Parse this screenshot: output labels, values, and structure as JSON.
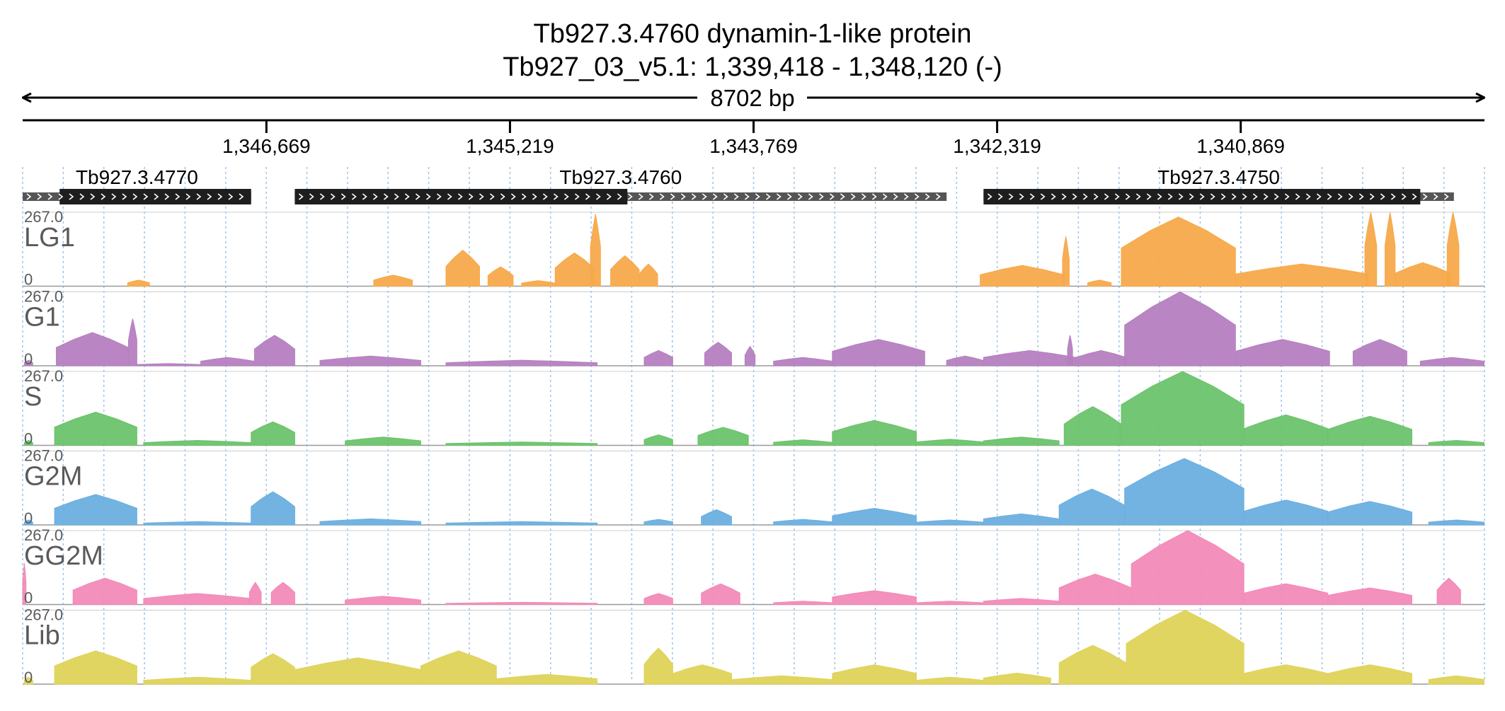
{
  "header": {
    "title": "Tb927.3.4760  dynamin-1-like protein",
    "locus": "Tb927_03_v5.1: 1,339,418 - 1,348,120 (-)",
    "span": "8702 bp"
  },
  "colors": {
    "axis": "#000000",
    "grid": "#9ec3e6",
    "track_label": "#5a5a5a",
    "gene_fill": "#1e1e1e",
    "gene_utr_fill": "#555555",
    "baseline": "#999999"
  },
  "chart_data": {
    "type": "area",
    "region": {
      "start": 1348120,
      "end": 1339418,
      "strand": "-"
    },
    "ruler": {
      "ticks": [
        1346669,
        1345219,
        1343769,
        1342319,
        1340869
      ],
      "tick_labels": [
        "1,346,669",
        "1,345,219",
        "1,343,769",
        "1,342,319",
        "1,340,869"
      ]
    },
    "genes": [
      {
        "name": "Tb927.3.4770",
        "label": "Tb927.3.4770",
        "start": 1348120,
        "end": 1346760,
        "cds_start": 1347900,
        "cds_end": 1346760
      },
      {
        "name": "Tb927.3.4760",
        "label": "Tb927.3.4760",
        "start": 1346500,
        "end": 1342620,
        "cds_start": 1346500,
        "cds_end": 1344520
      },
      {
        "name": "Tb927.3.4750",
        "label": "Tb927.3.4750",
        "start": 1342400,
        "end": 1339600,
        "cds_start": 1342400,
        "cds_end": 1339800
      }
    ],
    "y_max_label": "267.0",
    "y_min_label": "0",
    "ylim": [
      0,
      267
    ],
    "series": [
      {
        "name": "LG1",
        "color": "#f7a94a",
        "segments": [
          {
            "s": 1347495,
            "e": 1347365,
            "peak": 22
          },
          {
            "s": 1346030,
            "e": 1345800,
            "peak": 40
          },
          {
            "s": 1345600,
            "e": 1345400,
            "peak": 130
          },
          {
            "s": 1345350,
            "e": 1345200,
            "peak": 70
          },
          {
            "s": 1345150,
            "e": 1344950,
            "peak": 20
          },
          {
            "s": 1344950,
            "e": 1344720,
            "peak": 120
          },
          {
            "s": 1344740,
            "e": 1344680,
            "peak": 260
          },
          {
            "s": 1344620,
            "e": 1344450,
            "peak": 110
          },
          {
            "s": 1344450,
            "e": 1344340,
            "peak": 80
          },
          {
            "s": 1342420,
            "e": 1341920,
            "peak": 75
          },
          {
            "s": 1341930,
            "e": 1341890,
            "peak": 180
          },
          {
            "s": 1341780,
            "e": 1341640,
            "peak": 22
          },
          {
            "s": 1341580,
            "e": 1340900,
            "peak": 250
          },
          {
            "s": 1340900,
            "e": 1340110,
            "peak": 80
          },
          {
            "s": 1340130,
            "e": 1340060,
            "peak": 267
          },
          {
            "s": 1340010,
            "e": 1339950,
            "peak": 267
          },
          {
            "s": 1339950,
            "e": 1339620,
            "peak": 85
          },
          {
            "s": 1339640,
            "e": 1339570,
            "peak": 267
          }
        ]
      },
      {
        "name": "G1",
        "color": "#b57fc0",
        "segments": [
          {
            "s": 1348110,
            "e": 1348060,
            "peak": 20
          },
          {
            "s": 1347920,
            "e": 1347490,
            "peak": 120
          },
          {
            "s": 1347490,
            "e": 1347440,
            "peak": 170
          },
          {
            "s": 1347440,
            "e": 1347060,
            "peak": 8
          },
          {
            "s": 1347060,
            "e": 1346740,
            "peak": 30
          },
          {
            "s": 1346740,
            "e": 1346500,
            "peak": 110
          },
          {
            "s": 1346350,
            "e": 1345750,
            "peak": 35
          },
          {
            "s": 1345600,
            "e": 1344700,
            "peak": 20
          },
          {
            "s": 1344420,
            "e": 1344250,
            "peak": 55
          },
          {
            "s": 1344060,
            "e": 1343900,
            "peak": 85
          },
          {
            "s": 1343820,
            "e": 1343760,
            "peak": 70
          },
          {
            "s": 1343650,
            "e": 1343300,
            "peak": 30
          },
          {
            "s": 1343300,
            "e": 1342750,
            "peak": 95
          },
          {
            "s": 1342620,
            "e": 1342400,
            "peak": 35
          },
          {
            "s": 1342400,
            "e": 1341850,
            "peak": 55
          },
          {
            "s": 1341900,
            "e": 1341870,
            "peak": 110
          },
          {
            "s": 1341850,
            "e": 1341550,
            "peak": 55
          },
          {
            "s": 1341560,
            "e": 1340900,
            "peak": 267
          },
          {
            "s": 1340900,
            "e": 1340340,
            "peak": 95
          },
          {
            "s": 1340200,
            "e": 1339880,
            "peak": 95
          },
          {
            "s": 1339800,
            "e": 1339420,
            "peak": 30
          }
        ]
      },
      {
        "name": "S",
        "color": "#6cc36c",
        "segments": [
          {
            "s": 1348110,
            "e": 1348060,
            "peak": 18
          },
          {
            "s": 1347930,
            "e": 1347440,
            "peak": 120
          },
          {
            "s": 1347400,
            "e": 1346760,
            "peak": 18
          },
          {
            "s": 1346760,
            "e": 1346500,
            "peak": 85
          },
          {
            "s": 1346200,
            "e": 1345750,
            "peak": 30
          },
          {
            "s": 1345600,
            "e": 1344700,
            "peak": 12
          },
          {
            "s": 1344420,
            "e": 1344250,
            "peak": 38
          },
          {
            "s": 1344100,
            "e": 1343800,
            "peak": 65
          },
          {
            "s": 1343650,
            "e": 1343300,
            "peak": 20
          },
          {
            "s": 1343300,
            "e": 1342800,
            "peak": 90
          },
          {
            "s": 1342800,
            "e": 1342400,
            "peak": 22
          },
          {
            "s": 1342400,
            "e": 1341950,
            "peak": 30
          },
          {
            "s": 1341920,
            "e": 1341580,
            "peak": 140
          },
          {
            "s": 1341580,
            "e": 1340850,
            "peak": 267
          },
          {
            "s": 1340850,
            "e": 1340350,
            "peak": 110
          },
          {
            "s": 1340350,
            "e": 1339850,
            "peak": 105
          },
          {
            "s": 1339750,
            "e": 1339420,
            "peak": 18
          }
        ]
      },
      {
        "name": "G2M",
        "color": "#6aafe0",
        "segments": [
          {
            "s": 1348110,
            "e": 1348060,
            "peak": 18
          },
          {
            "s": 1347930,
            "e": 1347440,
            "peak": 110
          },
          {
            "s": 1347400,
            "e": 1346760,
            "peak": 12
          },
          {
            "s": 1346760,
            "e": 1346500,
            "peak": 120
          },
          {
            "s": 1346350,
            "e": 1345750,
            "peak": 22
          },
          {
            "s": 1345600,
            "e": 1344700,
            "peak": 12
          },
          {
            "s": 1344420,
            "e": 1344250,
            "peak": 20
          },
          {
            "s": 1344080,
            "e": 1343900,
            "peak": 55
          },
          {
            "s": 1343650,
            "e": 1343300,
            "peak": 20
          },
          {
            "s": 1343300,
            "e": 1342800,
            "peak": 60
          },
          {
            "s": 1342800,
            "e": 1342400,
            "peak": 18
          },
          {
            "s": 1342400,
            "e": 1341950,
            "peak": 40
          },
          {
            "s": 1341950,
            "e": 1341560,
            "peak": 130
          },
          {
            "s": 1341560,
            "e": 1340850,
            "peak": 240
          },
          {
            "s": 1340850,
            "e": 1340350,
            "peak": 90
          },
          {
            "s": 1340350,
            "e": 1339850,
            "peak": 85
          },
          {
            "s": 1339750,
            "e": 1339420,
            "peak": 18
          }
        ]
      },
      {
        "name": "GG2M",
        "color": "#f28ab8",
        "segments": [
          {
            "s": 1348120,
            "e": 1348100,
            "peak": 150
          },
          {
            "s": 1347820,
            "e": 1347440,
            "peak": 95
          },
          {
            "s": 1347400,
            "e": 1346760,
            "peak": 40
          },
          {
            "s": 1346770,
            "e": 1346700,
            "peak": 80
          },
          {
            "s": 1346640,
            "e": 1346500,
            "peak": 80
          },
          {
            "s": 1346200,
            "e": 1345750,
            "peak": 30
          },
          {
            "s": 1345600,
            "e": 1344700,
            "peak": 8
          },
          {
            "s": 1344420,
            "e": 1344250,
            "peak": 40
          },
          {
            "s": 1344080,
            "e": 1343850,
            "peak": 75
          },
          {
            "s": 1343650,
            "e": 1343300,
            "peak": 12
          },
          {
            "s": 1343300,
            "e": 1342800,
            "peak": 50
          },
          {
            "s": 1342800,
            "e": 1342400,
            "peak": 12
          },
          {
            "s": 1342400,
            "e": 1341950,
            "peak": 22
          },
          {
            "s": 1341950,
            "e": 1341520,
            "peak": 110
          },
          {
            "s": 1341520,
            "e": 1340850,
            "peak": 267
          },
          {
            "s": 1340850,
            "e": 1340350,
            "peak": 75
          },
          {
            "s": 1340350,
            "e": 1339850,
            "peak": 60
          },
          {
            "s": 1339700,
            "e": 1339560,
            "peak": 95
          }
        ]
      },
      {
        "name": "Lib",
        "color": "#dfd35a",
        "segments": [
          {
            "s": 1348110,
            "e": 1348060,
            "peak": 25
          },
          {
            "s": 1347930,
            "e": 1347440,
            "peak": 120
          },
          {
            "s": 1347400,
            "e": 1346760,
            "peak": 25
          },
          {
            "s": 1346760,
            "e": 1346500,
            "peak": 110
          },
          {
            "s": 1346500,
            "e": 1345750,
            "peak": 95
          },
          {
            "s": 1345750,
            "e": 1345300,
            "peak": 120
          },
          {
            "s": 1345300,
            "e": 1344700,
            "peak": 35
          },
          {
            "s": 1344420,
            "e": 1344250,
            "peak": 130
          },
          {
            "s": 1344250,
            "e": 1343900,
            "peak": 70
          },
          {
            "s": 1343900,
            "e": 1343300,
            "peak": 30
          },
          {
            "s": 1343300,
            "e": 1342800,
            "peak": 70
          },
          {
            "s": 1342800,
            "e": 1342400,
            "peak": 25
          },
          {
            "s": 1342400,
            "e": 1342000,
            "peak": 40
          },
          {
            "s": 1341950,
            "e": 1341550,
            "peak": 140
          },
          {
            "s": 1341550,
            "e": 1340850,
            "peak": 267
          },
          {
            "s": 1340850,
            "e": 1340350,
            "peak": 70
          },
          {
            "s": 1340350,
            "e": 1339850,
            "peak": 70
          },
          {
            "s": 1339750,
            "e": 1339420,
            "peak": 30
          }
        ]
      }
    ]
  }
}
